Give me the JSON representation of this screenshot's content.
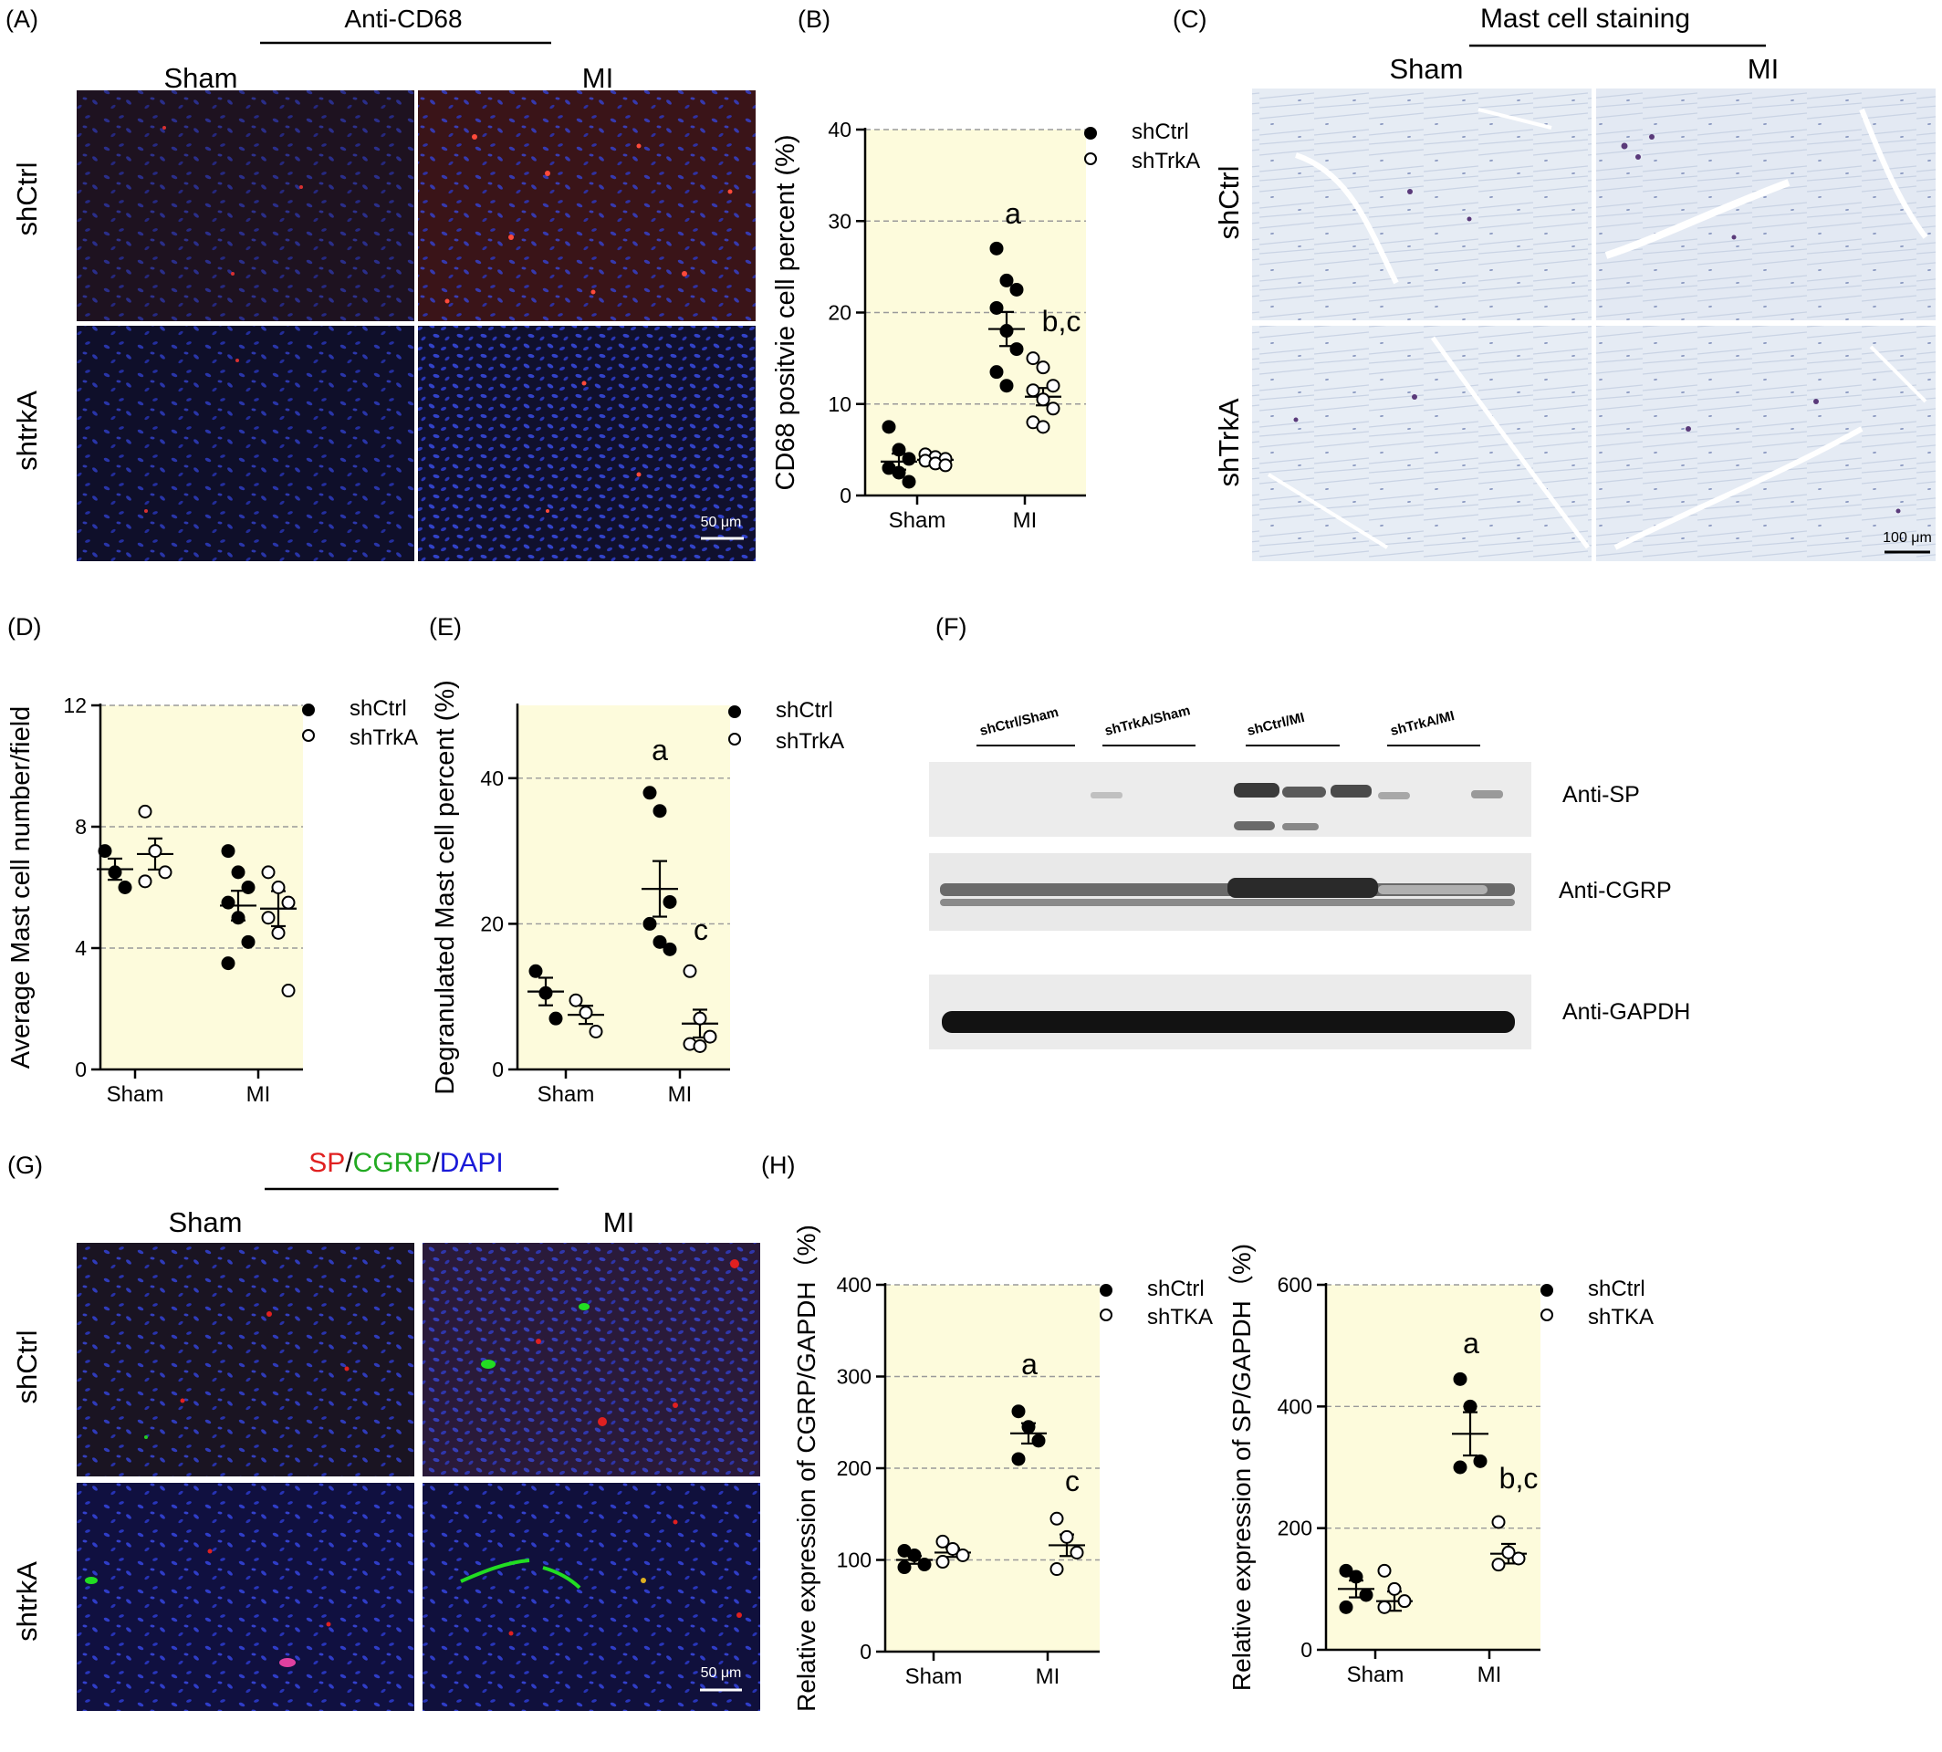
{
  "panels": {
    "A": {
      "letter": "(A)",
      "stain": "Anti-CD68",
      "col_labels": [
        "Sham",
        "MI"
      ],
      "row_labels": [
        "shCtrl",
        "shtrkA"
      ],
      "scale": "50 μm"
    },
    "B": {
      "letter": "(B)",
      "ylabel": "CD68 positvie cell percent (%)",
      "categories": [
        "Sham",
        "MI"
      ],
      "ylim": [
        0,
        40
      ],
      "yticks": [
        0,
        10,
        20,
        30,
        40
      ],
      "legend": [
        "shCtrl",
        "shTrkA"
      ],
      "annotations": [
        "a",
        "b,c"
      ]
    },
    "C": {
      "letter": "(C)",
      "stain": "Mast cell staining",
      "col_labels": [
        "Sham",
        "MI"
      ],
      "row_labels": [
        "shCtrl",
        "shTrkA"
      ],
      "scale": "100 μm"
    },
    "D": {
      "letter": "(D)",
      "ylabel": "Average Mast cell number/field",
      "categories": [
        "Sham",
        "MI"
      ],
      "ylim": [
        0,
        12
      ],
      "yticks": [
        0,
        4,
        8,
        12
      ],
      "legend": [
        "shCtrl",
        "shTrkA"
      ]
    },
    "E": {
      "letter": "(E)",
      "ylabel": "Degranulated Mast cell percent (%)",
      "categories": [
        "Sham",
        "MI"
      ],
      "ylim": [
        0,
        50
      ],
      "yticks": [
        0,
        20,
        40
      ],
      "legend": [
        "shCtrl",
        "shTrkA"
      ],
      "annotations": [
        "a",
        "c"
      ]
    },
    "F": {
      "letter": "(F)",
      "groups": [
        "shCtrl/Sham",
        "shTrkA/Sham",
        "shCtrl/MI",
        "shTrkA/MI"
      ],
      "blots": [
        "Anti-SP",
        "Anti-CGRP",
        "Anti-GAPDH"
      ]
    },
    "G": {
      "letter": "(G)",
      "title_sp": "SP",
      "title_sep1": "/",
      "title_cgrp": "CGRP",
      "title_sep2": "/",
      "title_dapi": "DAPI",
      "col_labels": [
        "Sham",
        "MI"
      ],
      "row_labels": [
        "shCtrl",
        "shtrkA"
      ],
      "scale": "50 μm"
    },
    "H": {
      "letter": "(H)"
    },
    "H1": {
      "ylabel": "Relative expression of CGRP/GAPDH（%)",
      "categories": [
        "Sham",
        "MI"
      ],
      "ylim": [
        0,
        400
      ],
      "yticks": [
        0,
        100,
        200,
        300,
        400
      ],
      "legend": [
        "shCtrl",
        "shTKA"
      ],
      "annotations": [
        "a",
        "c"
      ]
    },
    "H2": {
      "ylabel": "Relative expression of SP/GAPDH（%)",
      "categories": [
        "Sham",
        "MI"
      ],
      "ylim": [
        0,
        600
      ],
      "yticks": [
        0,
        200,
        400,
        600
      ],
      "legend": [
        "shCtrl",
        "shTKA"
      ],
      "annotations": [
        "a",
        "b,c"
      ]
    }
  },
  "colors": {
    "plot_bg": "#fdfbdc",
    "grid": "#9a9a9a",
    "fluor_bg": "#15121e",
    "dapi": "#2f3fd9",
    "sp_red": "#e02020",
    "cgrp_green": "#22cc22",
    "dapi_blue": "#1a1ad8",
    "tb_bg": "#e6ecf4",
    "tb_cell": "#5a3a7a"
  },
  "chart_data": [
    {
      "type": "scatter",
      "panel": "B",
      "categories": [
        "Sham",
        "MI"
      ],
      "series": [
        {
          "name": "shCtrl",
          "values": [
            [
              7.5,
              5,
              4,
              3,
              2.5,
              1.5
            ],
            [
              27,
              23.5,
              22.5,
              20.5,
              18,
              16,
              13.5,
              12
            ]
          ],
          "mean": [
            3.7,
            18.2
          ]
        },
        {
          "name": "shTrkA",
          "values": [
            [
              4.5,
              4.2,
              4,
              3.8,
              3.5,
              3.3
            ],
            [
              15,
              14,
              12,
              11.5,
              10.5,
              9.5,
              8,
              7.5
            ]
          ],
          "mean": [
            3.9,
            10.8
          ]
        }
      ]
    },
    {
      "type": "scatter",
      "panel": "D",
      "categories": [
        "Sham",
        "MI"
      ],
      "series": [
        {
          "name": "shCtrl",
          "values": [
            [
              7.2,
              6.5,
              6.0
            ],
            [
              7.2,
              6.5,
              6.0,
              5.5,
              5.0,
              4.2,
              3.5
            ]
          ],
          "mean": [
            6.6,
            5.4
          ]
        },
        {
          "name": "shTrkA",
          "values": [
            [
              8.5,
              7.2,
              6.5,
              6.2
            ],
            [
              6.5,
              6.0,
              5.5,
              5.0,
              4.5,
              2.6
            ]
          ],
          "mean": [
            7.1,
            5.3
          ]
        }
      ]
    },
    {
      "type": "scatter",
      "panel": "E",
      "categories": [
        "Sham",
        "MI"
      ],
      "series": [
        {
          "name": "shCtrl",
          "values": [
            [
              13.5,
              10.5,
              7.0
            ],
            [
              38,
              35.5,
              23,
              20,
              17.5,
              16.5
            ]
          ],
          "mean": [
            10.7,
            24.8
          ]
        },
        {
          "name": "shTrkA",
          "values": [
            [
              9.5,
              7.8,
              5.2
            ],
            [
              13.5,
              7.0,
              4.5,
              3.5,
              3.2
            ]
          ],
          "mean": [
            7.5,
            6.3
          ]
        }
      ]
    },
    {
      "type": "scatter",
      "panel": "H1",
      "categories": [
        "Sham",
        "MI"
      ],
      "series": [
        {
          "name": "shCtrl",
          "values": [
            [
              110,
              105,
              95,
              92
            ],
            [
              262,
              245,
              230,
              210
            ]
          ],
          "mean": [
            100,
            238
          ]
        },
        {
          "name": "shTKA",
          "values": [
            [
              120,
              112,
              105,
              98
            ],
            [
              145,
              125,
              108,
              90
            ]
          ],
          "mean": [
            108,
            116
          ]
        }
      ]
    },
    {
      "type": "scatter",
      "panel": "H2",
      "categories": [
        "Sham",
        "MI"
      ],
      "series": [
        {
          "name": "shCtrl",
          "values": [
            [
              130,
              120,
              90,
              70
            ],
            [
              445,
              400,
              310,
              300
            ]
          ],
          "mean": [
            100,
            355
          ]
        },
        {
          "name": "shTKA",
          "values": [
            [
              130,
              100,
              80,
              70
            ],
            [
              210,
              160,
              150,
              140
            ]
          ],
          "mean": [
            80,
            158
          ]
        }
      ]
    }
  ]
}
